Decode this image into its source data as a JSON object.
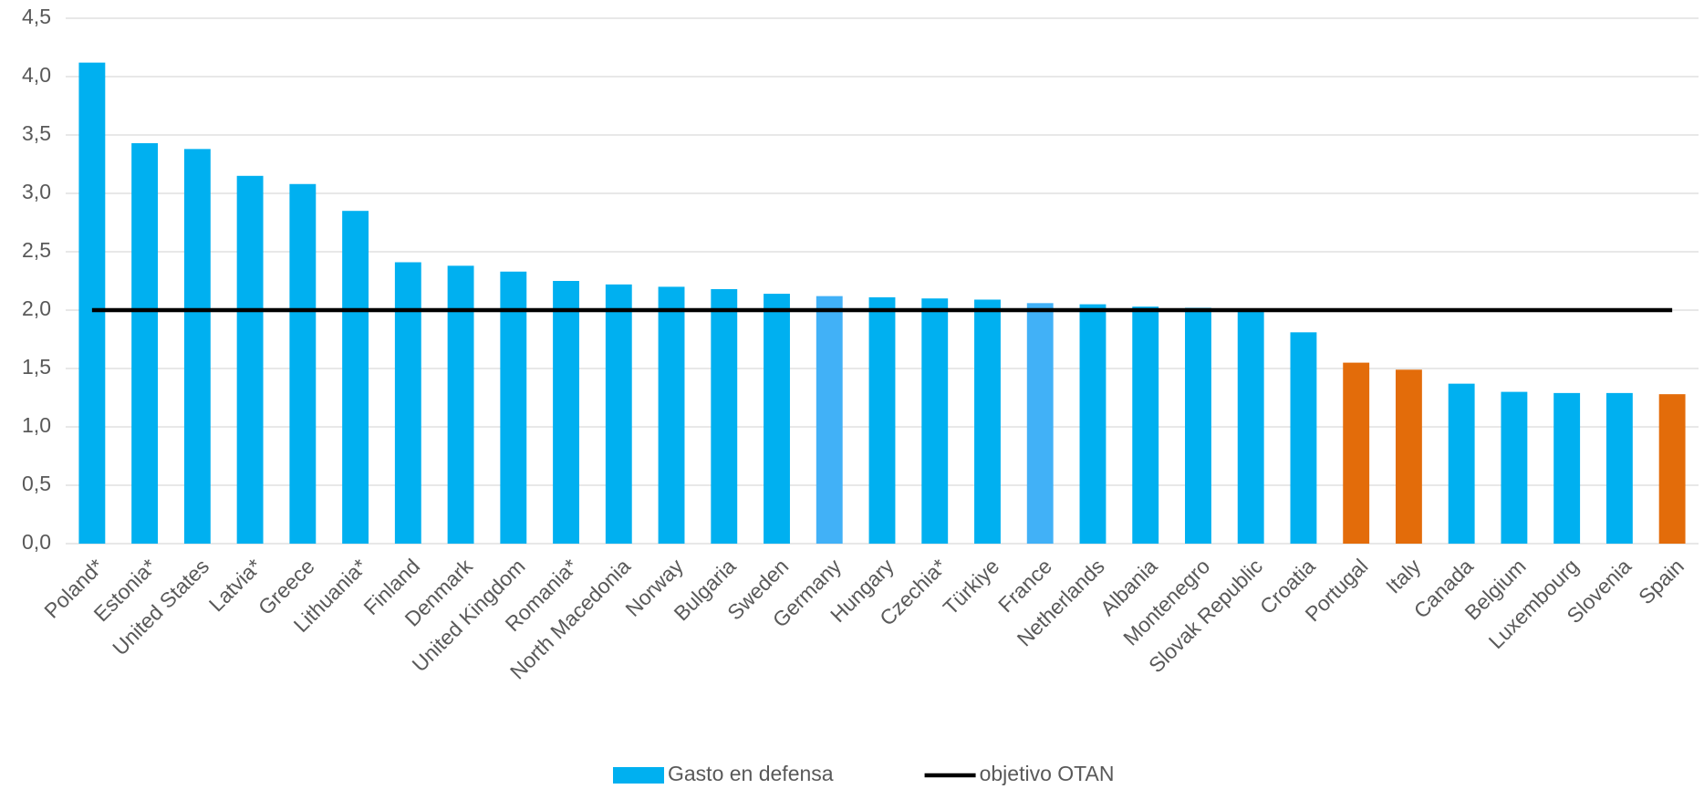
{
  "chart_data": {
    "type": "bar",
    "categories": [
      "Poland*",
      "Estonia*",
      "United States",
      "Latvia*",
      "Greece",
      "Lithuania*",
      "Finland",
      "Denmark",
      "United Kingdom",
      "Romania*",
      "North Macedonia",
      "Norway",
      "Bulgaria",
      "Sweden",
      "Germany",
      "Hungary",
      "Czechia*",
      "Türkiye",
      "France",
      "Netherlands",
      "Albania",
      "Montenegro",
      "Slovak Republic",
      "Croatia",
      "Portugal",
      "Italy",
      "Canada",
      "Belgium",
      "Luxembourg",
      "Slovenia",
      "Spain"
    ],
    "series": [
      {
        "name": "Gasto en defensa",
        "type": "bar",
        "color": "#00b0f0",
        "values": [
          4.12,
          3.43,
          3.38,
          3.15,
          3.08,
          2.85,
          2.41,
          2.38,
          2.33,
          2.25,
          2.22,
          2.2,
          2.18,
          2.14,
          2.12,
          2.11,
          2.1,
          2.09,
          2.06,
          2.05,
          2.03,
          2.02,
          2.0,
          1.81,
          1.55,
          1.49,
          1.37,
          1.3,
          1.29,
          1.29,
          1.28
        ],
        "colors": [
          "#00b0f0",
          "#00b0f0",
          "#00b0f0",
          "#00b0f0",
          "#00b0f0",
          "#00b0f0",
          "#00b0f0",
          "#00b0f0",
          "#00b0f0",
          "#00b0f0",
          "#00b0f0",
          "#00b0f0",
          "#00b0f0",
          "#00b0f0",
          "#41b1f7",
          "#00b0f0",
          "#00b0f0",
          "#00b0f0",
          "#41b1f7",
          "#00b0f0",
          "#00b0f0",
          "#00b0f0",
          "#00b0f0",
          "#00b0f0",
          "#e36c0a",
          "#e36c0a",
          "#00b0f0",
          "#00b0f0",
          "#00b0f0",
          "#00b0f0",
          "#e36c0a"
        ]
      },
      {
        "name": "objetivo OTAN",
        "type": "line",
        "color": "#000000",
        "values": [
          2,
          2,
          2,
          2,
          2,
          2,
          2,
          2,
          2,
          2,
          2,
          2,
          2,
          2,
          2,
          2,
          2,
          2,
          2,
          2,
          2,
          2,
          2,
          2,
          2,
          2,
          2,
          2,
          2,
          2,
          2
        ]
      }
    ],
    "ylim": [
      0,
      4.5
    ],
    "yticks": [
      {
        "value": 0,
        "label": "0,0"
      },
      {
        "value": 0.5,
        "label": "0,5"
      },
      {
        "value": 1,
        "label": "1,0"
      },
      {
        "value": 1.5,
        "label": "1,5"
      },
      {
        "value": 2,
        "label": "2,0"
      },
      {
        "value": 2.5,
        "label": "2,5"
      },
      {
        "value": 3,
        "label": "3,0"
      },
      {
        "value": 3.5,
        "label": "3,5"
      },
      {
        "value": 4,
        "label": "4,0"
      },
      {
        "value": 4.5,
        "label": "4,5"
      }
    ],
    "grid": true,
    "legend": "bottom"
  }
}
